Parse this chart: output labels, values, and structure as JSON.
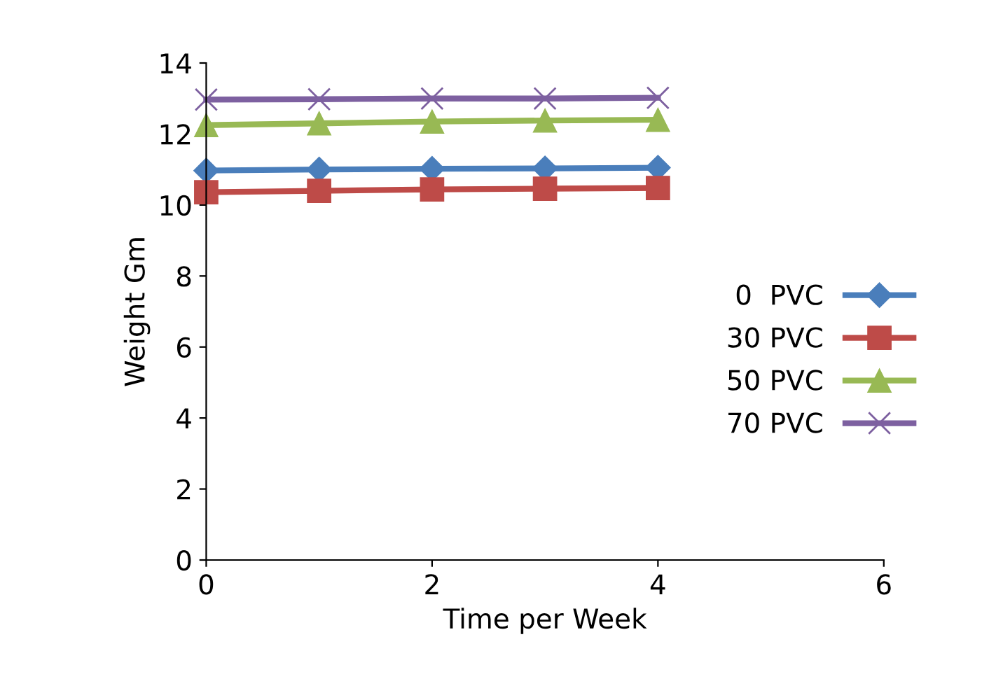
{
  "chart_data": {
    "type": "line",
    "xlabel": "Time per Week",
    "ylabel": "Weight Gm",
    "x": [
      0,
      1,
      2,
      3,
      4
    ],
    "series": [
      {
        "name": "0  PVC",
        "color": "#4a7ebb",
        "marker": "diamond",
        "values": [
          10.97,
          11.0,
          11.02,
          11.03,
          11.05
        ]
      },
      {
        "name": "30 PVC",
        "color": "#be4b48",
        "marker": "square",
        "values": [
          10.36,
          10.4,
          10.44,
          10.46,
          10.48
        ]
      },
      {
        "name": "50 PVC",
        "color": "#98b954",
        "marker": "triangle",
        "values": [
          12.25,
          12.3,
          12.35,
          12.38,
          12.4
        ]
      },
      {
        "name": "70 PVC",
        "color": "#7d60a0",
        "marker": "cross",
        "values": [
          12.97,
          12.98,
          13.0,
          13.0,
          13.02
        ]
      }
    ],
    "xlim": [
      0,
      6
    ],
    "xticks": [
      0,
      2,
      4,
      6
    ],
    "ylim": [
      0,
      14
    ],
    "yticks": [
      0,
      2,
      4,
      6,
      8,
      10,
      12,
      14
    ],
    "grid": false,
    "legend": "right"
  }
}
